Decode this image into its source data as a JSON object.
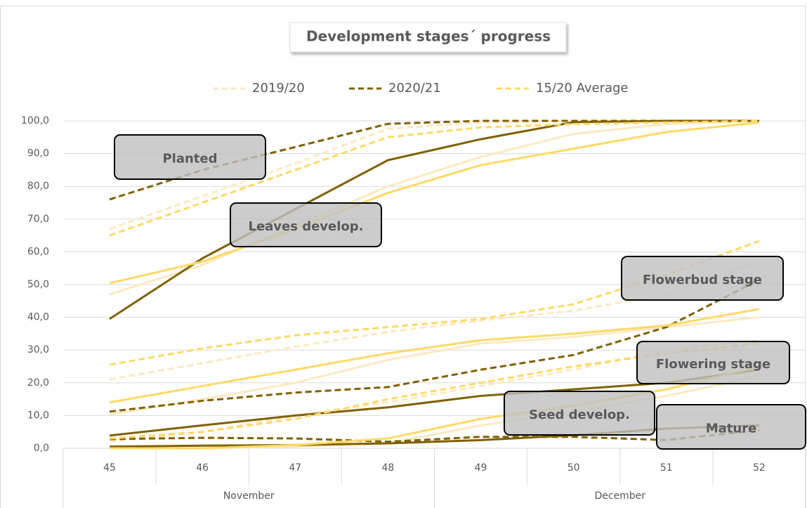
{
  "chart_data": {
    "type": "line",
    "title": "Development stages´ progress",
    "categories": [
      "45",
      "46",
      "47",
      "48",
      "49",
      "50",
      "51",
      "52"
    ],
    "groups": [
      {
        "label": "November",
        "span": 4
      },
      {
        "label": "December",
        "span": 4
      }
    ],
    "stages": [
      "Planted",
      "Leaves develop.",
      "Flowerbud stage",
      "Flowering stage",
      "Seed develop.",
      "Mature"
    ],
    "dashed": [
      true,
      false,
      true,
      false,
      true,
      false
    ],
    "series": [
      {
        "name": "2019/20",
        "color": "#fde9c1",
        "values": [
          [
            67,
            77,
            87,
            97.6,
            99.5,
            100,
            100,
            100
          ],
          [
            47,
            56,
            68,
            80,
            89,
            96,
            99,
            100
          ],
          [
            21,
            26,
            31,
            35.5,
            39,
            42,
            47,
            57
          ],
          [
            10.3,
            15,
            20,
            27,
            32,
            34,
            37,
            40
          ],
          [
            2,
            5,
            10,
            14,
            19,
            24,
            30,
            33
          ],
          [
            0,
            0,
            0.5,
            1.5,
            7,
            11,
            16,
            22
          ]
        ]
      },
      {
        "name": "2020/21",
        "color": "#7f6000",
        "values": [
          [
            76,
            85,
            92,
            99.1,
            100,
            100,
            100,
            100
          ],
          [
            39.5,
            58,
            73,
            88,
            94.4,
            99.6,
            100,
            100
          ],
          [
            11.2,
            14.5,
            17,
            18.7,
            24,
            28.5,
            37,
            51.5
          ],
          [
            3.9,
            7,
            10,
            12.5,
            16,
            18,
            20,
            24
          ],
          [
            2.8,
            3.2,
            3,
            2,
            3.5,
            3.5,
            2.5,
            5.5
          ],
          [
            0.5,
            0.8,
            1,
            1.5,
            2.5,
            4,
            6,
            7
          ]
        ]
      },
      {
        "name": "15/20 Average",
        "color": "#ffd966",
        "values": [
          [
            65,
            75,
            85,
            95,
            98,
            99,
            99.5,
            100
          ],
          [
            50.4,
            57,
            67,
            78,
            86.5,
            91.5,
            96.6,
            99.5
          ],
          [
            25.5,
            30.5,
            34.5,
            37,
            39.5,
            44,
            53,
            63.3
          ],
          [
            14,
            19,
            24,
            29,
            33,
            35,
            37.5,
            42.5
          ],
          [
            3,
            5,
            9,
            15,
            20,
            25,
            29,
            32
          ],
          [
            0,
            0,
            1,
            3,
            9,
            13,
            18,
            25
          ]
        ]
      }
    ],
    "ylim": [
      0,
      100
    ],
    "yticks": [
      {
        "value": 0,
        "label": "0,0"
      },
      {
        "value": 10,
        "label": "10,0"
      },
      {
        "value": 20,
        "label": "20,0"
      },
      {
        "value": 30,
        "label": "30,0"
      },
      {
        "value": 40,
        "label": "40,0"
      },
      {
        "value": 50,
        "label": "50,0"
      },
      {
        "value": 60,
        "label": "60,0"
      },
      {
        "value": 70,
        "label": "70,0"
      },
      {
        "value": 80,
        "label": "80,0"
      },
      {
        "value": 90,
        "label": "90,0"
      },
      {
        "value": 100,
        "label": "100,0"
      }
    ],
    "grid": true
  }
}
